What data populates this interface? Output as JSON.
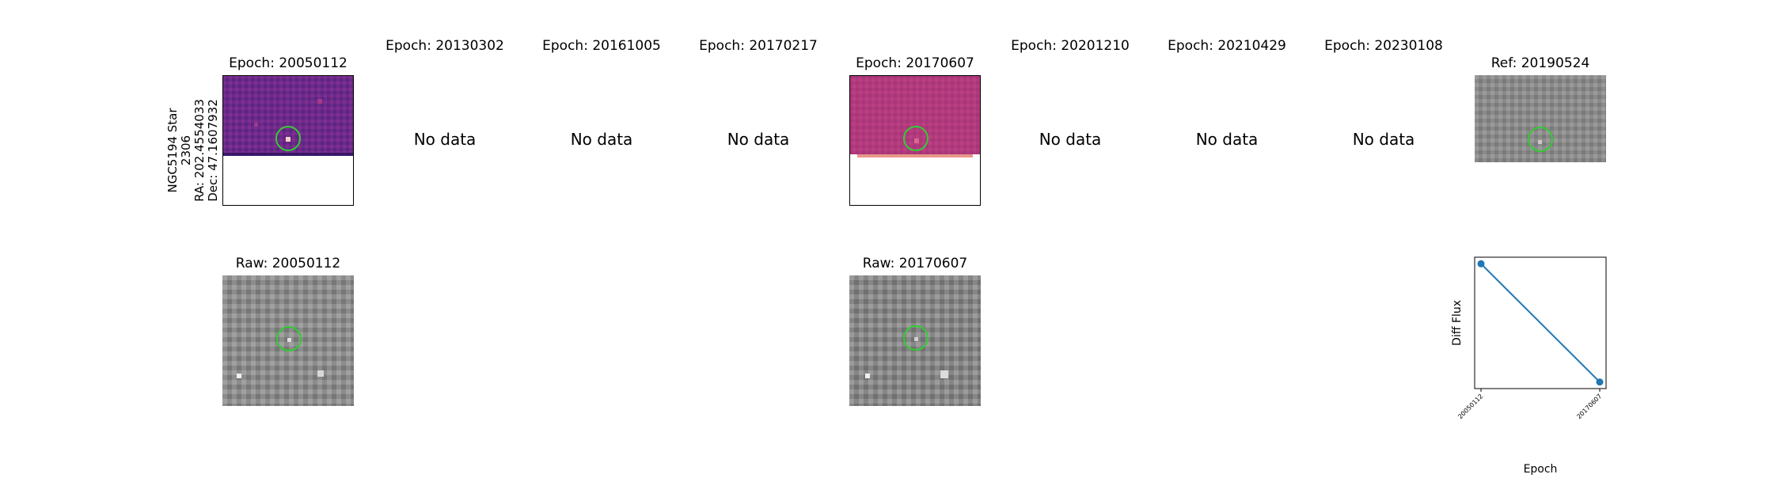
{
  "star_info": {
    "name": "NGC5194 Star 2306",
    "ra": "RA: 202.4554033",
    "dec": "Dec: 47.1607932"
  },
  "top_row": [
    {
      "title": "Epoch: 20050112",
      "status": "image",
      "colormap": "magma"
    },
    {
      "title": "Epoch: 20130302",
      "status": "No data"
    },
    {
      "title": "Epoch: 20161005",
      "status": "No data"
    },
    {
      "title": "Epoch: 20170217",
      "status": "No data"
    },
    {
      "title": "Epoch: 20170607",
      "status": "image",
      "colormap": "magma"
    },
    {
      "title": "Epoch: 20201210",
      "status": "No data"
    },
    {
      "title": "Epoch: 20210429",
      "status": "No data"
    },
    {
      "title": "Epoch: 20230108",
      "status": "No data"
    },
    {
      "title": "Ref: 20190524",
      "status": "image",
      "colormap": "gray"
    }
  ],
  "bottom_row": [
    {
      "title": "Raw: 20050112",
      "colormap": "gray"
    },
    {
      "title": "Raw: 20170607",
      "colormap": "gray"
    }
  ],
  "colors": {
    "aperture_circle": "#33cc33",
    "series_line": "#1f77b4",
    "magma_bg": "#7a2a8e",
    "magma_bg_2": "#a8307a"
  },
  "chart_data": {
    "type": "line",
    "x": [
      "20050112",
      "20170607"
    ],
    "series": [
      {
        "values": [
          0.95,
          0.05
        ]
      }
    ],
    "xlabel": "Epoch",
    "ylabel": "Diff Flux",
    "ylim": [
      0,
      1
    ],
    "grid": false,
    "y_ticks_shown": false,
    "note_values_normalized": true
  }
}
